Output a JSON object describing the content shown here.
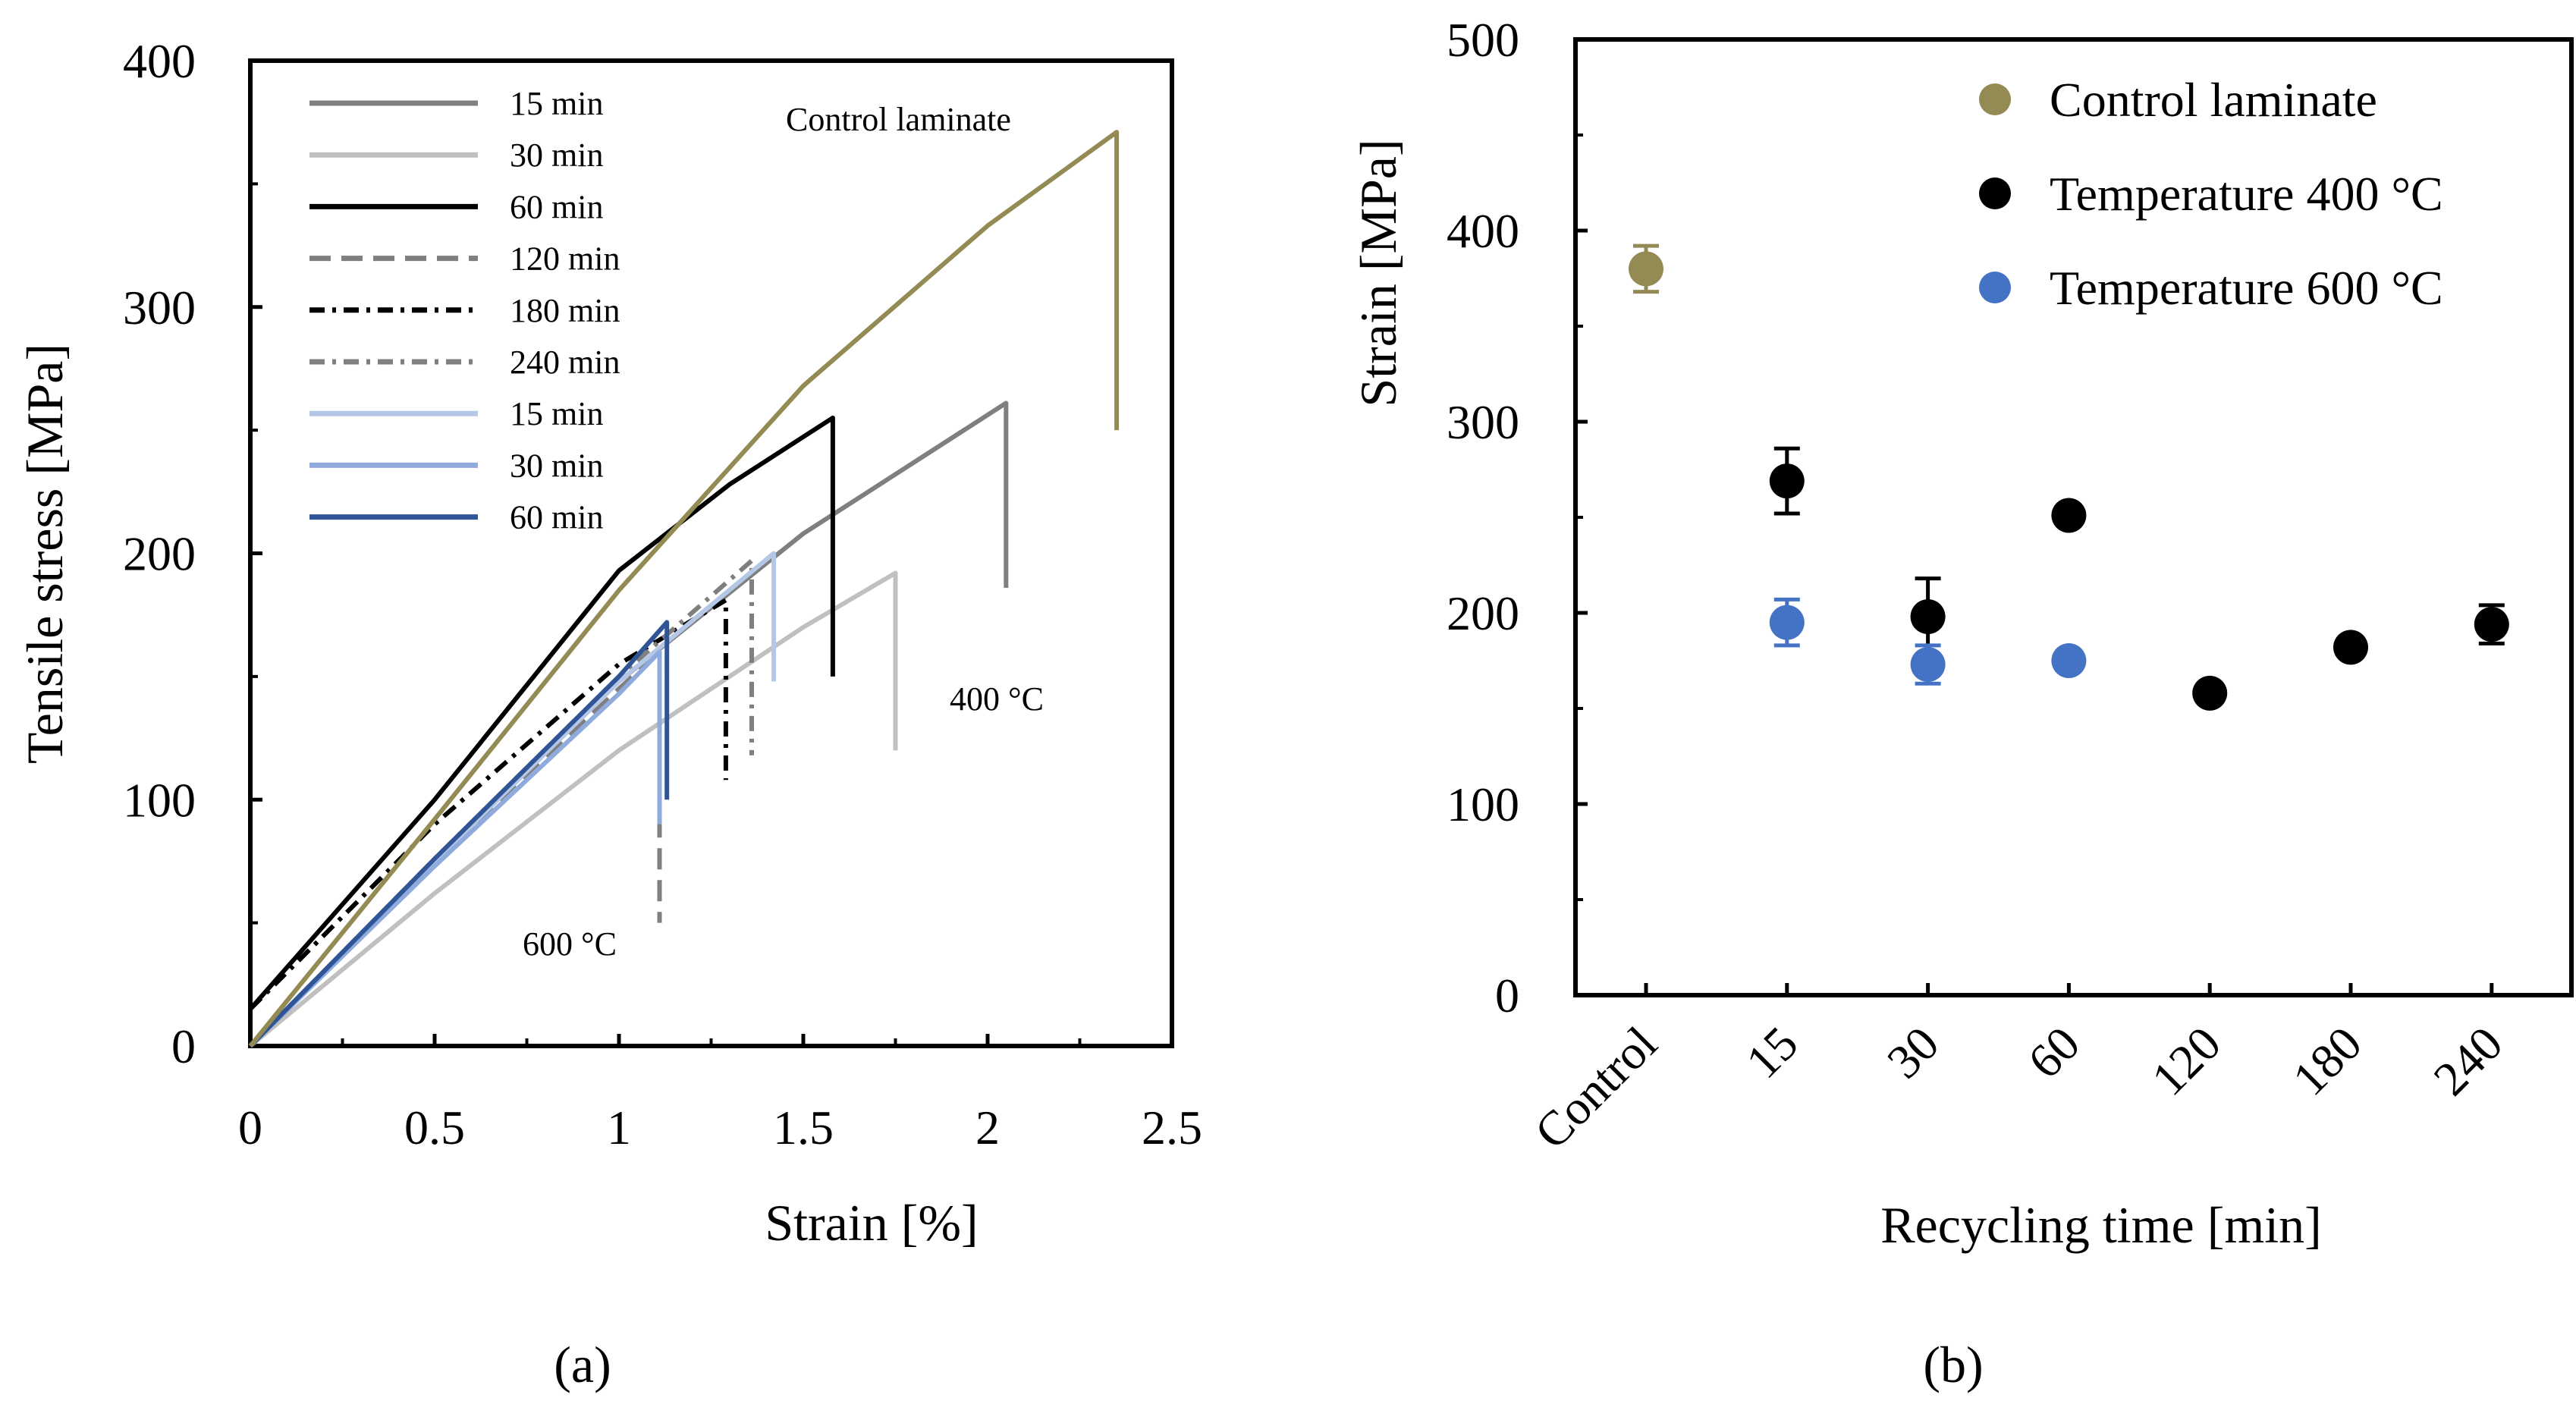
{
  "chart_data": [
    {
      "panel": "a",
      "panel_label": "(a)",
      "type": "line",
      "xlabel": "Strain [%]",
      "ylabel": "Tensile stress [MPa]",
      "xlim": [
        0,
        2.5
      ],
      "ylim": [
        0,
        400
      ],
      "xticks": [
        "0",
        "0.5",
        "1",
        "1.5",
        "2",
        "2.5"
      ],
      "yticks": [
        "0",
        "100",
        "200",
        "300",
        "400"
      ],
      "annotations": [
        {
          "text": "Control laminate",
          "color": "#948a54"
        },
        {
          "text": "400 °C",
          "color": "#000000"
        },
        {
          "text": "600 °C",
          "color": "#2e55a0"
        }
      ],
      "series": [
        {
          "name": "Control laminate",
          "legend": false,
          "color": "#948a54",
          "dash": "solid",
          "x": [
            0,
            0.5,
            1.0,
            1.5,
            2.0,
            2.35,
            2.35
          ],
          "y": [
            0,
            92,
            185,
            268,
            333,
            371,
            250
          ]
        },
        {
          "name": "15 min",
          "group": "400 °C",
          "legend": true,
          "color": "#7f7f7f",
          "dash": "solid",
          "x": [
            0,
            0.5,
            1.0,
            1.5,
            2.05,
            2.05
          ],
          "y": [
            0,
            75,
            148,
            208,
            261,
            186
          ]
        },
        {
          "name": "30 min",
          "group": "400 °C",
          "legend": true,
          "color": "#c0c0c0",
          "dash": "solid",
          "x": [
            0,
            0.5,
            1.0,
            1.5,
            1.75,
            1.75
          ],
          "y": [
            0,
            62,
            120,
            170,
            192,
            120
          ]
        },
        {
          "name": "60 min",
          "group": "400 °C",
          "legend": true,
          "color": "#000000",
          "dash": "solid",
          "x": [
            0,
            0.5,
            1.0,
            1.3,
            1.58,
            1.58
          ],
          "y": [
            15,
            100,
            193,
            228,
            255,
            150
          ]
        },
        {
          "name": "120 min",
          "group": "400 °C",
          "legend": true,
          "color": "#7f7f7f",
          "dash": "dash",
          "x": [
            0,
            0.5,
            1.0,
            1.11,
            1.11
          ],
          "y": [
            0,
            75,
            145,
            160,
            50
          ]
        },
        {
          "name": "180 min",
          "group": "400 °C",
          "legend": true,
          "color": "#000000",
          "dash": "dashdot",
          "x": [
            0,
            0.5,
            1.0,
            1.29,
            1.29
          ],
          "y": [
            15,
            90,
            155,
            181,
            108
          ]
        },
        {
          "name": "240 min",
          "group": "400 °C",
          "legend": true,
          "color": "#7f7f7f",
          "dash": "dashdot",
          "x": [
            0,
            0.5,
            1.0,
            1.36,
            1.36
          ],
          "y": [
            0,
            76,
            150,
            197,
            118
          ]
        },
        {
          "name": "15 min",
          "group": "600 °C",
          "legend": true,
          "color": "#b4c7e7",
          "dash": "solid",
          "x": [
            0,
            0.5,
            1.0,
            1.42,
            1.42
          ],
          "y": [
            0,
            75,
            148,
            200,
            148
          ]
        },
        {
          "name": "30 min",
          "group": "600 °C",
          "legend": true,
          "color": "#8faadc",
          "dash": "solid",
          "x": [
            0,
            0.5,
            1.0,
            1.11,
            1.11
          ],
          "y": [
            0,
            73,
            143,
            160,
            90
          ]
        },
        {
          "name": "60 min",
          "group": "600 °C",
          "legend": true,
          "color": "#2f5597",
          "dash": "solid",
          "x": [
            0,
            0.5,
            1.0,
            1.13,
            1.13
          ],
          "y": [
            0,
            76,
            150,
            172,
            100
          ]
        }
      ]
    },
    {
      "panel": "b",
      "panel_label": "(b)",
      "type": "scatter",
      "xlabel": "Recycling time [min]",
      "ylabel": "Strain [MPa]",
      "ylim": [
        0,
        500
      ],
      "categories": [
        "Control",
        "15",
        "30",
        "60",
        "120",
        "180",
        "240"
      ],
      "yticks": [
        "0",
        "100",
        "200",
        "300",
        "400",
        "500"
      ],
      "series": [
        {
          "name": "Control laminate",
          "color": "#948a54",
          "points": [
            {
              "category": "Control",
              "value": 380,
              "error": 12
            }
          ]
        },
        {
          "name": "Temperature 400 °C",
          "color": "#000000",
          "points": [
            {
              "category": "15",
              "value": 269,
              "error": 17
            },
            {
              "category": "30",
              "value": 198,
              "error": 20
            },
            {
              "category": "60",
              "value": 251,
              "error": 0
            },
            {
              "category": "120",
              "value": 158,
              "error": 5
            },
            {
              "category": "180",
              "value": 182,
              "error": 0
            },
            {
              "category": "240",
              "value": 194,
              "error": 10
            }
          ]
        },
        {
          "name": "Temperature 600 °C",
          "color": "#4472c4",
          "points": [
            {
              "category": "15",
              "value": 195,
              "error": 12
            },
            {
              "category": "30",
              "value": 173,
              "error": 10
            },
            {
              "category": "60",
              "value": 175,
              "error": 0
            }
          ]
        }
      ]
    }
  ]
}
